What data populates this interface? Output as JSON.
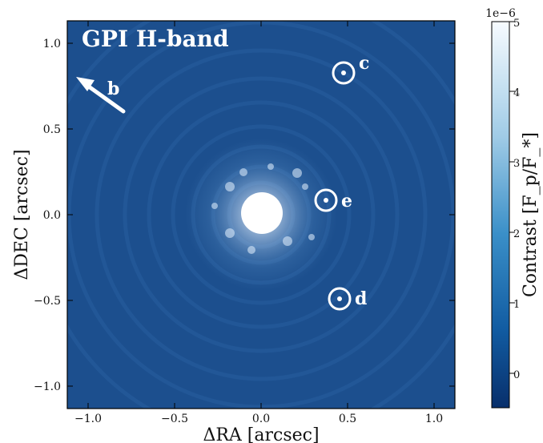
{
  "image": {
    "title": "GPI H-band",
    "xlabel": "ΔRA [arcsec]",
    "ylabel": "ΔDEC [arcsec]",
    "x_ticks": [
      "−1.0",
      "−0.5",
      "0.0",
      "0.5",
      "1.0"
    ],
    "y_ticks": [
      "1.0",
      "0.5",
      "0.0",
      "−0.5",
      "−1.0"
    ],
    "colorbar": {
      "label": "Contrast [F_p/F_*]",
      "exponent": "1e−6",
      "ticks": [
        "5",
        "4",
        "3",
        "2",
        "1",
        "0"
      ]
    },
    "planets": [
      {
        "label": "c",
        "x": 0.48,
        "y": 0.82
      },
      {
        "label": "e",
        "x": 0.38,
        "y": 0.09
      },
      {
        "label": "d",
        "x": 0.46,
        "y": -0.49
      }
    ],
    "arrow_label": "b",
    "colors": {
      "background": "#1c4f8e",
      "dark": "#0a2e63",
      "light": "#eaf4ff",
      "ring": "#ffffff"
    }
  }
}
